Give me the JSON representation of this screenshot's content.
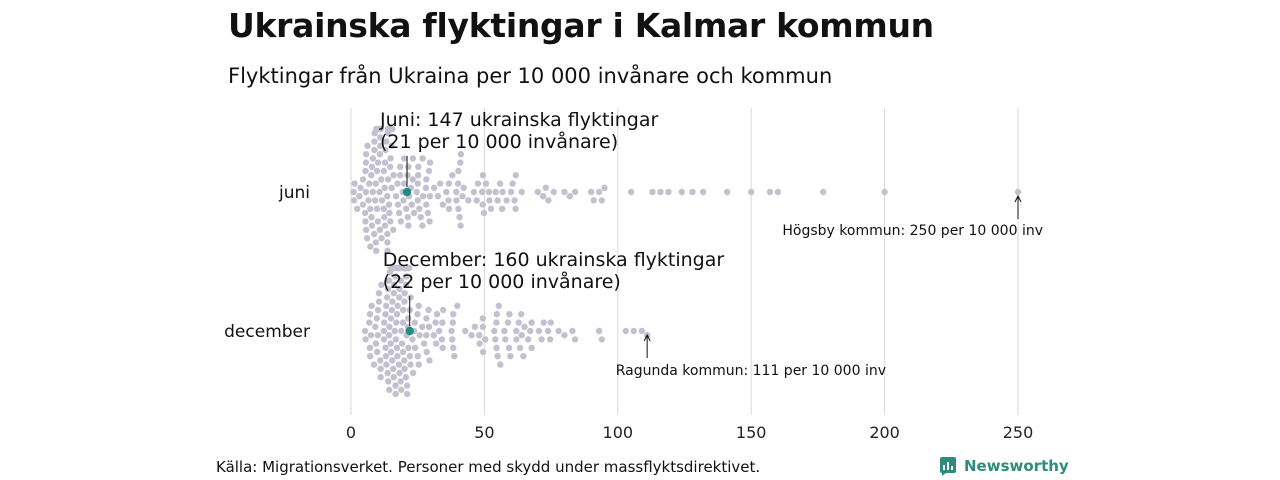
{
  "title": "Ukrainska flyktingar i Kalmar kommun",
  "subtitle": "Flyktingar från Ukraina per 10 000 invånare och kommun",
  "source": "Källa: Migrationsverket. Personer med skydd under massflyktsdirektivet.",
  "brand": "Newsworthy",
  "colors": {
    "dot": "#c3c1cf",
    "highlight": "#1f8e80",
    "grid": "#d9d9d9",
    "brand": "#2e8b7e"
  },
  "chart_data": {
    "type": "scatter",
    "subtype": "beeswarm",
    "xlim": [
      0,
      250
    ],
    "x_ticks": [
      "0",
      "50",
      "100",
      "150",
      "200",
      "250"
    ],
    "grid": true,
    "rows": [
      {
        "label": "juni",
        "highlight": {
          "value": 21,
          "annotation_line1": "Juni: 147 ukrainska flyktingar",
          "annotation_line2": "(21 per 10 000 invånare)"
        },
        "max_note": {
          "value": 250,
          "text": "Högsby kommun: 250 per 10 000 inv"
        },
        "sparse_values": [
          64,
          70,
          72,
          73,
          74,
          76,
          80,
          82,
          84,
          90,
          91,
          93,
          94,
          95,
          105,
          113,
          116,
          119,
          124,
          128,
          132,
          141,
          150,
          157,
          160,
          177,
          200,
          250
        ]
      },
      {
        "label": "december",
        "highlight": {
          "value": 22,
          "annotation_line1": "December: 160 ukrainska flyktingar",
          "annotation_line2": "(22 per 10 000 invånare)"
        },
        "max_note": {
          "value": 111,
          "text": "Ragunda kommun: 111 per 10 000 inv"
        },
        "sparse_values": [
          80,
          83,
          84,
          93,
          94,
          103,
          106,
          109,
          111
        ]
      }
    ]
  }
}
